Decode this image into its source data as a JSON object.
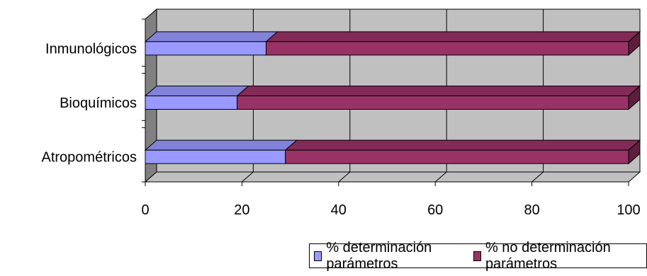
{
  "chart_data": {
    "type": "bar",
    "orientation": "horizontal",
    "stacked": true,
    "categories": [
      "Inmunológicos",
      "Bioquímicos",
      "Atropométricos"
    ],
    "series": [
      {
        "name": "% determinación parámetros",
        "values": [
          25,
          19,
          29
        ],
        "color": "#9999ff"
      },
      {
        "name": "% no determinación parámetros",
        "values": [
          75,
          81,
          71
        ],
        "color": "#993366"
      }
    ],
    "xlim": [
      0,
      100
    ],
    "x_ticks": [
      "0",
      "20",
      "40",
      "60",
      "80",
      "100"
    ],
    "grid": true,
    "legend_position": "bottom-right",
    "background_color": "#c0c0c0"
  }
}
